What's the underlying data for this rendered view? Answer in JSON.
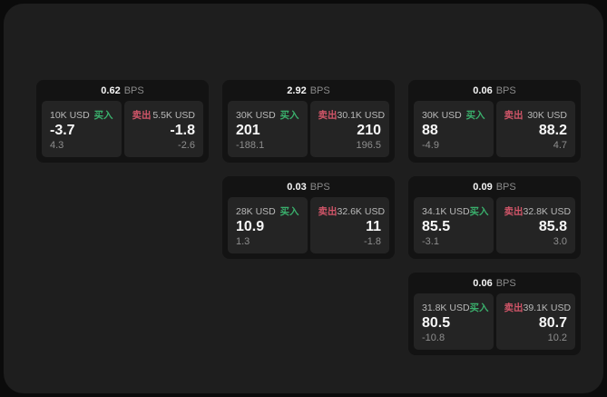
{
  "colors": {
    "outer_bg": "#0b0b0b",
    "page_bg": "#1e1e1e",
    "card_bg": "#131313",
    "panel_bg": "#242424",
    "buy_green": "#3aaf6c",
    "sell_rose": "#d05568"
  },
  "cards": [
    {
      "bps_value": "0.62",
      "bps_unit": "BPS",
      "buy": {
        "amount": "10K USD",
        "side_label": "买入",
        "price": "-3.7",
        "delta": "4.3"
      },
      "sell": {
        "side_label": "卖出",
        "amount": "5.5K USD",
        "price": "-1.8",
        "delta": "-2.6"
      }
    },
    {
      "bps_value": "2.92",
      "bps_unit": "BPS",
      "buy": {
        "amount": "30K USD",
        "side_label": "买入",
        "price": "201",
        "delta": "-188.1"
      },
      "sell": {
        "side_label": "卖出",
        "amount": "30.1K USD",
        "price": "210",
        "delta": "196.5"
      }
    },
    {
      "bps_value": "0.06",
      "bps_unit": "BPS",
      "buy": {
        "amount": "30K USD",
        "side_label": "买入",
        "price": "88",
        "delta": "-4.9"
      },
      "sell": {
        "side_label": "卖出",
        "amount": "30K USD",
        "price": "88.2",
        "delta": "4.7"
      }
    },
    {
      "bps_value": "0.03",
      "bps_unit": "BPS",
      "buy": {
        "amount": "28K USD",
        "side_label": "买入",
        "price": "10.9",
        "delta": "1.3"
      },
      "sell": {
        "side_label": "卖出",
        "amount": "32.6K USD",
        "price": "11",
        "delta": "-1.8"
      }
    },
    {
      "bps_value": "0.09",
      "bps_unit": "BPS",
      "buy": {
        "amount": "34.1K USD",
        "side_label": "买入",
        "price": "85.5",
        "delta": "-3.1"
      },
      "sell": {
        "side_label": "卖出",
        "amount": "32.8K USD",
        "price": "85.8",
        "delta": "3.0"
      }
    },
    {
      "bps_value": "0.06",
      "bps_unit": "BPS",
      "buy": {
        "amount": "31.8K USD",
        "side_label": "买入",
        "price": "80.5",
        "delta": "-10.8"
      },
      "sell": {
        "side_label": "卖出",
        "amount": "39.1K USD",
        "price": "80.7",
        "delta": "10.2"
      }
    }
  ]
}
